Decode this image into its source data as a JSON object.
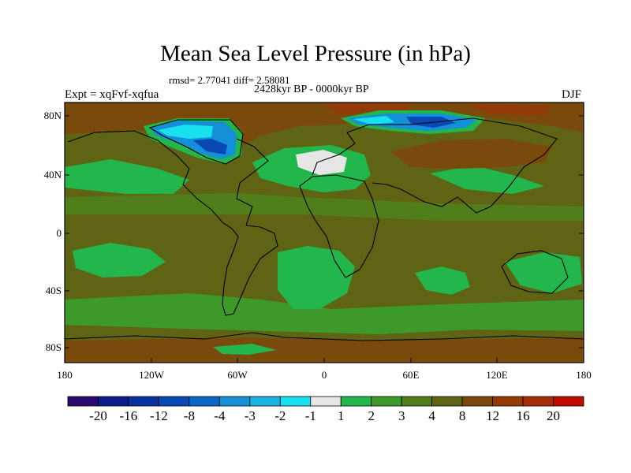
{
  "title": "Mean Sea Level Pressure (in hPa)",
  "stats": "rmsd= 2.77041 diff= 2.58081",
  "period": "2428kyr BP - 0000kyr BP",
  "expt": "Expt = xqFvf-xqfua",
  "season": "DJF",
  "y_axis_labels": [
    "80N",
    "40N",
    "0",
    "40S",
    "80S"
  ],
  "x_axis_labels": [
    "180",
    "120W",
    "60W",
    "0",
    "60E",
    "120E",
    "180"
  ],
  "colorbar": {
    "labels": [
      "-20",
      "-16",
      "-12",
      "-8",
      "-4",
      "-3",
      "-2",
      "-1",
      "1",
      "2",
      "3",
      "4",
      "8",
      "12",
      "16",
      "20"
    ],
    "colors": [
      "#2a0a6e",
      "#0a1a8c",
      "#0a2fa0",
      "#0a48b4",
      "#0a66c8",
      "#1590d8",
      "#1ab4e4",
      "#18e0ee",
      "#e6e6e6",
      "#22b64c",
      "#3d9a2a",
      "#4f7e1a",
      "#5f6414",
      "#7a4a0c",
      "#923a08",
      "#a82c08",
      "#c00c00"
    ]
  },
  "map_colors": {
    "base": "#5f6414",
    "light_green": "#22b64c",
    "green": "#3d9a2a",
    "olive": "#4f7e1a",
    "brown": "#7a4a0c",
    "red_brown": "#923a08",
    "neutral": "#e6e6e6",
    "blue": "#1590d8",
    "cyan": "#18e0ee",
    "dark_blue": "#0a48b4"
  }
}
